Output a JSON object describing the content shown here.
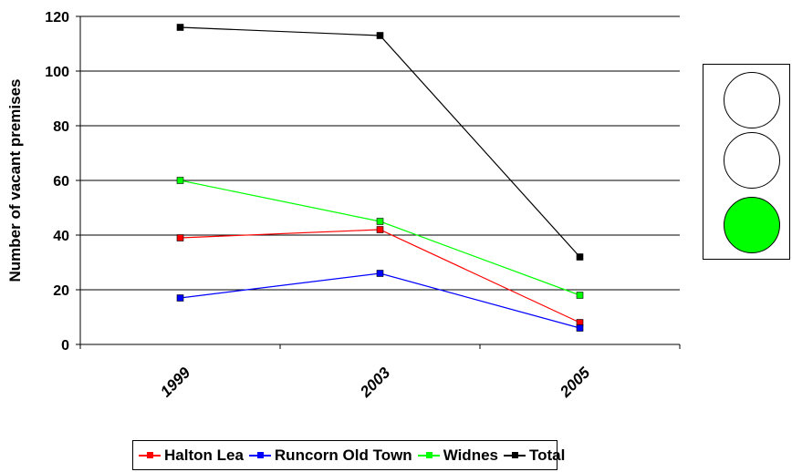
{
  "chart_data": {
    "type": "line",
    "categories": [
      "1999",
      "2003",
      "2005"
    ],
    "series": [
      {
        "name": "Halton Lea",
        "values": [
          39,
          42,
          8
        ],
        "color": "#ff0000"
      },
      {
        "name": "Runcorn Old Town",
        "values": [
          17,
          26,
          6
        ],
        "color": "#0000ff"
      },
      {
        "name": "Widnes",
        "values": [
          60,
          45,
          18
        ],
        "color": "#00ff00"
      },
      {
        "name": "Total",
        "values": [
          116,
          113,
          32
        ],
        "color": "#000000"
      }
    ],
    "title": "",
    "xlabel": "",
    "ylabel": "Number of vacant premises",
    "ylim": [
      0,
      120
    ],
    "yticks": [
      0,
      20,
      40,
      60,
      80,
      100,
      120
    ],
    "grid": true,
    "legend_position": "bottom"
  },
  "traffic_light": {
    "lamps": [
      {
        "state": "off",
        "color": "#ffffff"
      },
      {
        "state": "off",
        "color": "#ffffff"
      },
      {
        "state": "on",
        "color": "#00ff00"
      }
    ]
  }
}
